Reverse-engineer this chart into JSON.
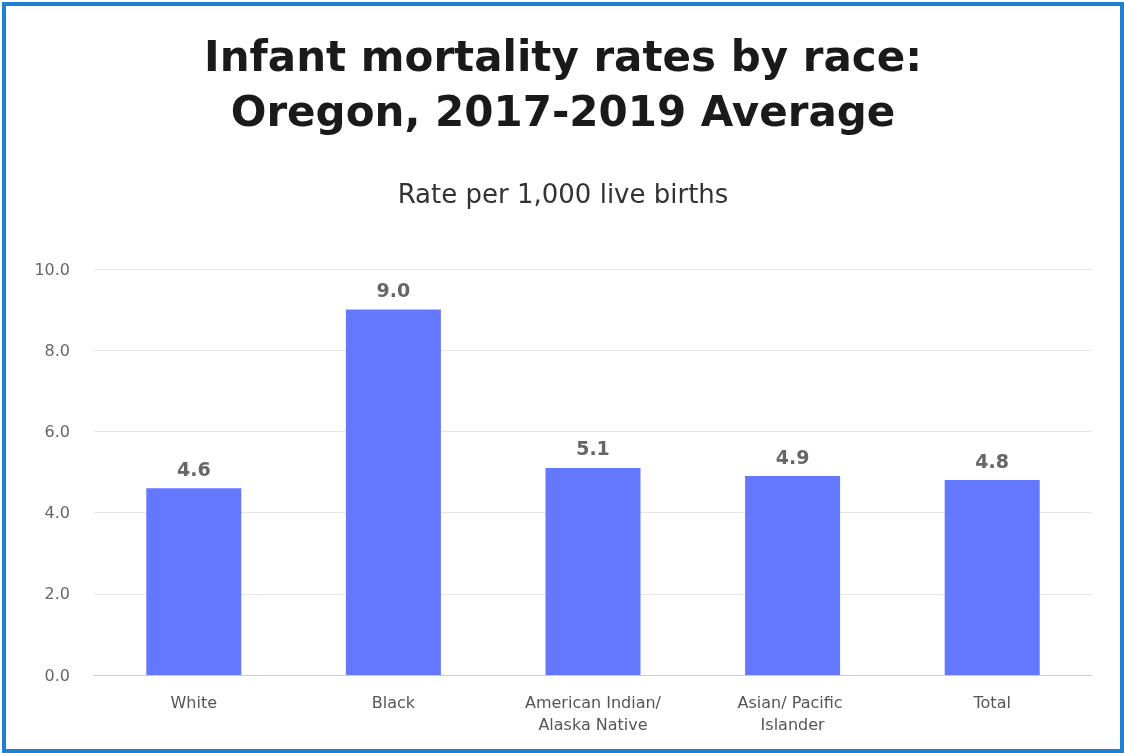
{
  "chart_data": {
    "type": "bar",
    "title": "Infant mortality rates by race:\nOregon, 2017-2019 Average",
    "subtitle": "Rate per 1,000 live births",
    "categories": [
      "White",
      "Black",
      "American Indian/Alaska Native",
      "Asian/ Pacific Islander",
      "Total"
    ],
    "values": [
      4.6,
      9.0,
      5.1,
      4.9,
      4.8
    ],
    "value_labels": [
      "4.6",
      "9.0",
      "5.1",
      "4.9",
      "4.8"
    ],
    "color": "#6478ff",
    "ylim": [
      0,
      10
    ],
    "yticks": [
      {
        "value": 0,
        "label": "0.0"
      },
      {
        "value": 2,
        "label": "2.0"
      },
      {
        "value": 4,
        "label": "4.0"
      },
      {
        "value": 6,
        "label": "6.0"
      },
      {
        "value": 8,
        "label": "8.0"
      },
      {
        "value": 10,
        "label": "10.0"
      }
    ],
    "grid": "y"
  }
}
